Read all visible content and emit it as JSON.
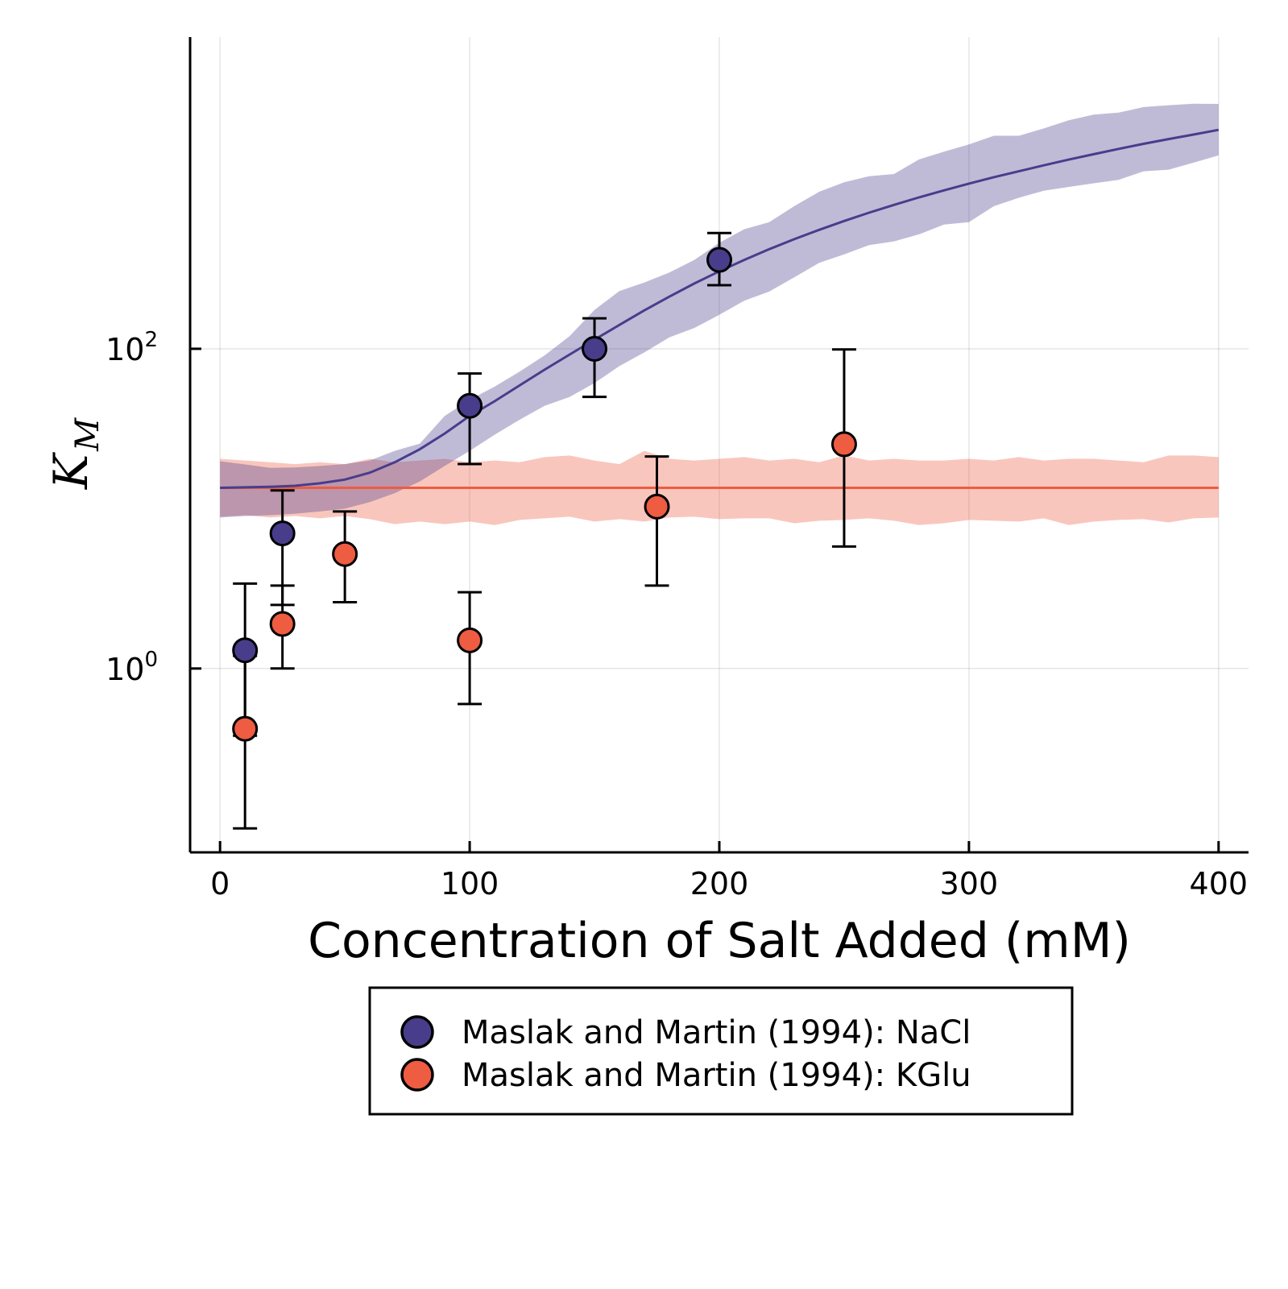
{
  "chart_data": {
    "type": "scatter",
    "title": "",
    "xlabel": "Concentration of Salt Added (mM)",
    "ylabel": {
      "base": "K",
      "sub": "M"
    },
    "xlim": [
      -12,
      412
    ],
    "ylim_log10": [
      -1.15,
      3.95
    ],
    "yscale": "log",
    "x_ticks": [
      0,
      100,
      200,
      300,
      400
    ],
    "y_ticks": [
      {
        "value": 1,
        "base": "10",
        "exp": "0"
      },
      {
        "value": 100,
        "base": "10",
        "exp": "2"
      }
    ],
    "grid": true,
    "legend_position": "bottom-center",
    "colors": {
      "nacl": "#483d8b",
      "kglu": "#ee5c42"
    },
    "series": [
      {
        "name": "Maslak and Martin (1994): NaCl",
        "key": "nacl",
        "points": [
          {
            "x": 10,
            "y": 1.3,
            "lo": 0.38,
            "hi": 3.4
          },
          {
            "x": 25,
            "y": 7.0,
            "lo": 2.5,
            "hi": 13.0
          },
          {
            "x": 100,
            "y": 44,
            "lo": 19,
            "hi": 70
          },
          {
            "x": 150,
            "y": 100,
            "lo": 50,
            "hi": 155
          },
          {
            "x": 200,
            "y": 360,
            "lo": 250,
            "hi": 530
          }
        ]
      },
      {
        "name": "Maslak and Martin (1994): KGlu",
        "key": "kglu",
        "points": [
          {
            "x": 10,
            "y": 0.42,
            "lo": 0.1,
            "hi": 1.2
          },
          {
            "x": 25,
            "y": 1.9,
            "lo": 1.0,
            "hi": 3.3
          },
          {
            "x": 50,
            "y": 5.2,
            "lo": 2.6,
            "hi": 9.6
          },
          {
            "x": 100,
            "y": 1.5,
            "lo": 0.6,
            "hi": 3.0
          },
          {
            "x": 175,
            "y": 10.3,
            "lo": 3.3,
            "hi": 21.2
          },
          {
            "x": 250,
            "y": 25.3,
            "lo": 5.8,
            "hi": 99
          }
        ]
      }
    ],
    "fits": [
      {
        "key": "nacl",
        "x": [
          0,
          10,
          20,
          30,
          40,
          50,
          60,
          70,
          80,
          90,
          100,
          110,
          120,
          130,
          140,
          150,
          160,
          170,
          180,
          190,
          200,
          210,
          220,
          230,
          240,
          250,
          260,
          270,
          280,
          290,
          300,
          310,
          320,
          330,
          340,
          350,
          360,
          370,
          380,
          390,
          400
        ],
        "y": [
          13.5,
          13.6,
          13.7,
          13.9,
          14.4,
          15.2,
          16.8,
          19.5,
          23.5,
          29.5,
          38,
          47,
          59,
          74,
          92,
          114,
          141,
          174,
          212,
          256,
          305,
          360,
          420,
          485,
          555,
          630,
          710,
          795,
          885,
          980,
          1080,
          1185,
          1290,
          1405,
          1525,
          1650,
          1780,
          1915,
          2050,
          2190,
          2340
        ],
        "lower": [
          8.8,
          9.0,
          9.1,
          9.3,
          9.6,
          10.0,
          11.0,
          12.5,
          14.8,
          18.5,
          23,
          29,
          36,
          44,
          50,
          61,
          78,
          95,
          118,
          135,
          163,
          200,
          228,
          280,
          345,
          390,
          445,
          470,
          520,
          598,
          620,
          780,
          880,
          975,
          1030,
          1085,
          1140,
          1290,
          1320,
          1460,
          1620
        ],
        "upper": [
          19.8,
          18.9,
          18.0,
          18.1,
          18.5,
          19.0,
          20.0,
          23.0,
          25.5,
          38,
          48,
          58,
          72,
          91,
          120,
          175,
          230,
          260,
          300,
          360,
          460,
          560,
          620,
          780,
          960,
          1100,
          1200,
          1240,
          1530,
          1710,
          1900,
          2150,
          2150,
          2390,
          2690,
          2920,
          3000,
          3250,
          3340,
          3410,
          3400
        ]
      },
      {
        "key": "kglu",
        "x": [
          0,
          10,
          20,
          30,
          40,
          50,
          60,
          70,
          80,
          90,
          100,
          110,
          120,
          130,
          140,
          150,
          160,
          170,
          180,
          190,
          200,
          210,
          220,
          230,
          240,
          250,
          260,
          270,
          280,
          290,
          300,
          310,
          320,
          330,
          340,
          350,
          360,
          370,
          380,
          390,
          400
        ],
        "y": [
          13.5,
          13.5,
          13.5,
          13.5,
          13.5,
          13.5,
          13.5,
          13.5,
          13.5,
          13.5,
          13.5,
          13.5,
          13.5,
          13.5,
          13.5,
          13.5,
          13.5,
          13.5,
          13.5,
          13.5,
          13.5,
          13.5,
          13.5,
          13.5,
          13.5,
          13.5,
          13.5,
          13.5,
          13.5,
          13.5,
          13.5,
          13.5,
          13.5,
          13.5,
          13.5,
          13.5,
          13.5,
          13.5,
          13.5,
          13.5,
          13.5
        ],
        "lower": [
          8.9,
          9.1,
          8.8,
          9.0,
          8.7,
          9.0,
          8.6,
          8.0,
          8.3,
          8.0,
          8.3,
          7.9,
          8.5,
          8.7,
          8.9,
          8.3,
          8.6,
          8.3,
          8.8,
          8.9,
          8.6,
          8.7,
          8.7,
          8.1,
          8.4,
          8.5,
          8.7,
          8.4,
          7.9,
          8.1,
          8.5,
          8.4,
          8.3,
          8.7,
          7.9,
          8.3,
          8.5,
          8.6,
          8.2,
          8.7,
          8.8
        ],
        "upper": [
          20.5,
          20.0,
          19.5,
          19.0,
          19.5,
          19.0,
          20.5,
          19.5,
          20.0,
          20.5,
          19.5,
          20.0,
          19.5,
          21.0,
          21.5,
          20.0,
          19.0,
          23.0,
          20.5,
          20.0,
          20.5,
          21.0,
          20.0,
          20.5,
          19.5,
          21.5,
          20.0,
          20.5,
          20.0,
          20.0,
          20.5,
          20.0,
          21.0,
          20.0,
          20.5,
          20.5,
          20.0,
          19.5,
          21.5,
          21.5,
          21.0
        ]
      }
    ]
  }
}
